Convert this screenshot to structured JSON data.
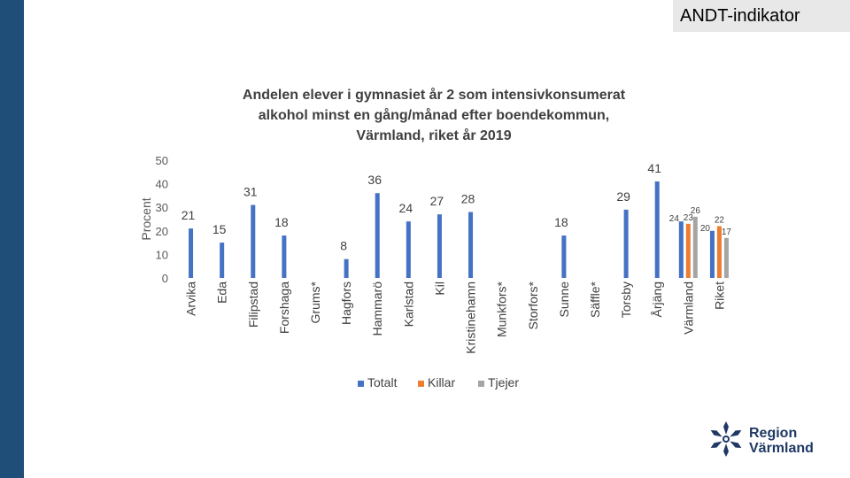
{
  "header": {
    "tag": "ANDT-indikator"
  },
  "chart_data": {
    "type": "bar",
    "title_lines": [
      "Andelen elever i gymnasiet år 2 som intensivkonsumerat",
      "alkohol minst en gång/månad efter boendekommun,",
      "Värmland, riket år 2019"
    ],
    "ylabel": "Procent",
    "ylim": [
      0,
      50
    ],
    "yticks": [
      0,
      10,
      20,
      30,
      40,
      50
    ],
    "grid": false,
    "legend_position": "bottom",
    "categories": [
      "Arvika",
      "Eda",
      "Filipstad",
      "Forshaga",
      "Grums*",
      "Hagfors",
      "Hammarö",
      "Karlstad",
      "Kil",
      "Kristinehamn",
      "Munkfors*",
      "Storfors*",
      "Sunne",
      "Säffle*",
      "Torsby",
      "Årjäng",
      "Värmland",
      "Riket"
    ],
    "series": [
      {
        "name": "Totalt",
        "color": "#4472c4",
        "values": [
          21,
          15,
          31,
          18,
          null,
          8,
          36,
          24,
          27,
          28,
          null,
          null,
          18,
          null,
          29,
          41,
          24,
          20
        ]
      },
      {
        "name": "Killar",
        "color": "#ed7d31",
        "values": [
          null,
          null,
          null,
          null,
          null,
          null,
          null,
          null,
          null,
          null,
          null,
          null,
          null,
          null,
          null,
          null,
          23,
          22
        ]
      },
      {
        "name": "Tjejer",
        "color": "#a5a5a5",
        "values": [
          null,
          null,
          null,
          null,
          null,
          null,
          null,
          null,
          null,
          null,
          null,
          null,
          null,
          null,
          null,
          null,
          26,
          17
        ]
      }
    ]
  },
  "brand": {
    "line1": "Region",
    "line2": "Värmland"
  }
}
